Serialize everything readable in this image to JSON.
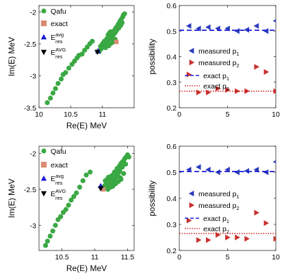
{
  "chart_data": [
    {
      "type": "scatter",
      "xlabel": "Re(E)  MeV",
      "ylabel": "Im(E)  MeV",
      "xlim": [
        10,
        11.5
      ],
      "ylim": [
        -3.5,
        -1.9
      ],
      "xticks": [
        10,
        10.5,
        11
      ],
      "xtick_labels": [
        "10",
        "10.5",
        "11"
      ],
      "yticks": [
        -3.5,
        -3,
        -2.5,
        -2
      ],
      "ytick_labels": [
        "-3.5",
        "-3",
        "-2.5",
        "-2"
      ],
      "legend_position": "top-left",
      "legend": [
        {
          "label": "Qafu",
          "marker": "circle",
          "color": "#3aa843"
        },
        {
          "label": "exact",
          "marker": "square",
          "color": "#d98c73"
        },
        {
          "label": "E",
          "sub": "res",
          "sup": "avg",
          "marker": "triangle-up",
          "color": "#1a1ad6"
        },
        {
          "label": "E",
          "sub": "res",
          "sup": "AVG",
          "marker": "triangle-down",
          "color": "#000000"
        }
      ],
      "series": [
        {
          "name": "Qafu",
          "marker": "circle",
          "color": "#3aa843",
          "x": [
            10.13,
            10.18,
            10.22,
            10.26,
            10.3,
            10.35,
            10.38,
            10.42,
            10.47,
            10.52,
            10.56,
            10.6,
            10.63,
            10.68,
            10.72,
            10.76,
            10.8,
            10.84,
            10.95,
            10.98,
            11.01,
            11.03,
            11.05,
            11.07,
            11.09,
            11.1,
            11.12,
            11.14,
            11.15,
            11.17,
            11.18,
            11.2,
            11.22,
            11.24,
            11.25,
            11.27,
            11.28,
            11.3,
            11.32,
            11.33,
            11.35,
            11.03,
            11.06,
            11.09,
            11.11,
            11.13,
            11.16,
            11.19,
            11.21,
            11.23,
            11.08,
            11.12,
            11.15,
            11.18,
            11.0,
            11.05,
            11.1,
            11.14,
            11.17,
            11.2,
            10.97,
            11.02,
            11.07,
            11.11,
            11.13,
            11.16,
            11.19,
            11.22,
            11.26,
            11.29,
            11.31
          ],
          "y": [
            -3.42,
            -3.35,
            -3.27,
            -3.2,
            -3.12,
            -3.05,
            -2.98,
            -2.95,
            -2.88,
            -2.82,
            -2.77,
            -2.72,
            -2.68,
            -2.66,
            -2.6,
            -2.55,
            -2.5,
            -2.46,
            -2.62,
            -2.58,
            -2.55,
            -2.52,
            -2.5,
            -2.47,
            -2.44,
            -2.42,
            -2.4,
            -2.37,
            -2.35,
            -2.32,
            -2.3,
            -2.27,
            -2.24,
            -2.22,
            -2.19,
            -2.17,
            -2.14,
            -2.11,
            -2.08,
            -2.05,
            -2.03,
            -2.46,
            -2.44,
            -2.36,
            -2.33,
            -2.31,
            -2.39,
            -2.34,
            -2.31,
            -2.28,
            -2.52,
            -2.48,
            -2.45,
            -2.42,
            -2.5,
            -2.56,
            -2.53,
            -2.49,
            -2.47,
            -2.43,
            -2.54,
            -2.48,
            -2.42,
            -2.38,
            -2.46,
            -2.37,
            -2.33,
            -2.29,
            -2.25,
            -2.21,
            -2.17
          ]
        },
        {
          "name": "exact",
          "marker": "square",
          "color": "#d98c73",
          "x": [
            11.22
          ],
          "y": [
            -2.47
          ]
        },
        {
          "name": "E_res^avg",
          "marker": "triangle-up",
          "color": "#1a1ad6",
          "x": [
            10.93
          ],
          "y": [
            -2.61
          ]
        },
        {
          "name": "E_res^AVG",
          "marker": "triangle-down",
          "color": "#000000",
          "x": [
            10.92
          ],
          "y": [
            -2.63
          ]
        }
      ]
    },
    {
      "type": "scatter",
      "xlabel": "",
      "ylabel": "possibility",
      "xlim": [
        0,
        10
      ],
      "ylim": [
        0.2,
        0.6
      ],
      "xticks": [
        0,
        5,
        10
      ],
      "xtick_labels": [
        "0",
        "5",
        "10"
      ],
      "yticks": [
        0.2,
        0.3,
        0.4,
        0.5,
        0.6
      ],
      "ytick_labels": [
        "0.2",
        "0.3",
        "0.4",
        "0.5",
        "0.6"
      ],
      "legend_position": "center-right",
      "legend": [
        {
          "label": "measured p",
          "sub": "1",
          "marker": "triangle-left",
          "color": "#2b3bbd"
        },
        {
          "label": "measured p",
          "sub": "2",
          "marker": "triangle-right",
          "color": "#c8302e"
        },
        {
          "label": "exact p",
          "sub": "1",
          "marker": "dashed-line",
          "color": "#1a1ad6"
        },
        {
          "label": "exact p",
          "sub": "2",
          "marker": "dotted-line",
          "color": "#d32020"
        }
      ],
      "series": [
        {
          "name": "measured p1",
          "marker": "triangle-left",
          "color": "#2b3bbd",
          "x": [
            1,
            2,
            3,
            4,
            5,
            6,
            7,
            8,
            9,
            10
          ],
          "y": [
            0.52,
            0.51,
            0.515,
            0.51,
            0.51,
            0.5,
            0.505,
            0.52,
            0.5,
            0.54
          ]
        },
        {
          "name": "measured p2",
          "marker": "triangle-right",
          "color": "#c8302e",
          "x": [
            1,
            2,
            3,
            4,
            5,
            6,
            7,
            8,
            9,
            10
          ],
          "y": [
            0.33,
            0.26,
            0.26,
            0.275,
            0.27,
            0.265,
            0.265,
            0.36,
            0.34,
            0.265
          ]
        },
        {
          "name": "exact p1",
          "line": "dashed",
          "color": "#1a1ad6",
          "y": 0.503
        },
        {
          "name": "exact p2",
          "line": "dotted",
          "color": "#d32020",
          "y": 0.265
        }
      ]
    },
    {
      "type": "scatter",
      "xlabel": "Re(E)  MeV",
      "ylabel": "Im(E)  MeV",
      "xlim": [
        10.15,
        11.6
      ],
      "ylim": [
        -3.35,
        -1.9
      ],
      "xticks": [
        10.5,
        11,
        11.5
      ],
      "xtick_labels": [
        "10.5",
        "11",
        "11.5"
      ],
      "yticks": [
        -3,
        -2.5,
        -2
      ],
      "ytick_labels": [
        "-3",
        "-2.5",
        "-2"
      ],
      "legend_position": "top-left",
      "legend": [
        {
          "label": "Qafu",
          "marker": "circle",
          "color": "#3aa843"
        },
        {
          "label": "exact",
          "marker": "square",
          "color": "#d98c73"
        },
        {
          "label": "E",
          "sub": "res",
          "sup": "avg",
          "marker": "triangle-up",
          "color": "#1a1ad6"
        },
        {
          "label": "E",
          "sub": "res",
          "sup": "AVG",
          "marker": "triangle-down",
          "color": "#000000"
        }
      ],
      "series": [
        {
          "name": "Qafu",
          "marker": "circle",
          "color": "#3aa843",
          "x": [
            10.25,
            10.28,
            10.32,
            10.36,
            10.4,
            10.44,
            10.48,
            10.52,
            10.56,
            10.6,
            10.64,
            10.68,
            10.72,
            10.77,
            10.82,
            10.87,
            10.93,
            11.12,
            11.15,
            11.18,
            11.2,
            11.22,
            11.24,
            11.26,
            11.28,
            11.3,
            11.32,
            11.34,
            11.36,
            11.38,
            11.4,
            11.42,
            11.44,
            11.46,
            11.48,
            11.5,
            11.16,
            11.19,
            11.21,
            11.23,
            11.25,
            11.27,
            11.29,
            11.31,
            11.33,
            11.35,
            11.37,
            11.2,
            11.24,
            11.28,
            11.32,
            11.36,
            11.4,
            11.18,
            11.22,
            11.26,
            11.3,
            11.34,
            11.38,
            11.42,
            11.44,
            11.47,
            11.52,
            11.27,
            11.33,
            11.39
          ],
          "y": [
            -3.28,
            -3.22,
            -3.15,
            -3.08,
            -3.0,
            -2.92,
            -2.88,
            -2.82,
            -2.78,
            -2.72,
            -2.65,
            -2.6,
            -2.55,
            -2.47,
            -2.38,
            -2.3,
            -2.26,
            -2.48,
            -2.45,
            -2.42,
            -2.4,
            -2.38,
            -2.35,
            -2.33,
            -2.3,
            -2.28,
            -2.25,
            -2.23,
            -2.2,
            -2.17,
            -2.14,
            -2.12,
            -2.1,
            -2.07,
            -2.05,
            -2.02,
            -2.38,
            -2.36,
            -2.33,
            -2.41,
            -2.43,
            -2.4,
            -2.37,
            -2.35,
            -2.32,
            -2.29,
            -2.26,
            -2.5,
            -2.47,
            -2.45,
            -2.42,
            -2.39,
            -2.36,
            -2.44,
            -2.4,
            -2.31,
            -2.26,
            -2.21,
            -2.24,
            -2.19,
            -2.28,
            -2.15,
            -2.05,
            -2.46,
            -2.4,
            -2.34
          ]
        },
        {
          "name": "exact",
          "marker": "square",
          "color": "#d98c73",
          "x": [
            11.13
          ],
          "y": [
            -2.5
          ]
        },
        {
          "name": "E_res^avg",
          "marker": "triangle-up",
          "color": "#1a1ad6",
          "x": [
            11.09
          ],
          "y": [
            -2.45
          ]
        },
        {
          "name": "E_res^AVG",
          "marker": "triangle-down",
          "color": "#000000",
          "x": [
            11.09
          ],
          "y": [
            -2.49
          ]
        }
      ]
    },
    {
      "type": "scatter",
      "xlabel": "",
      "ylabel": "possibility",
      "xlim": [
        0,
        10
      ],
      "ylim": [
        0.2,
        0.6
      ],
      "xticks": [
        0,
        5,
        10
      ],
      "xtick_labels": [
        "0",
        "5",
        "10"
      ],
      "yticks": [
        0.2,
        0.3,
        0.4,
        0.5,
        0.6
      ],
      "ytick_labels": [
        "0.2",
        "0.3",
        "0.4",
        "0.5",
        "0.6"
      ],
      "legend_position": "center-right",
      "legend": [
        {
          "label": "measured p",
          "sub": "1",
          "marker": "triangle-left",
          "color": "#2b3bbd"
        },
        {
          "label": "measured p",
          "sub": "2",
          "marker": "triangle-right",
          "color": "#c8302e"
        },
        {
          "label": "exact p",
          "sub": "1",
          "marker": "dashed-line",
          "color": "#1a1ad6"
        },
        {
          "label": "exact p",
          "sub": "2",
          "marker": "dotted-line",
          "color": "#d32020"
        }
      ],
      "series": [
        {
          "name": "measured p1",
          "marker": "triangle-left",
          "color": "#2b3bbd",
          "x": [
            1,
            2,
            3,
            4,
            5,
            6,
            7,
            8,
            9,
            10
          ],
          "y": [
            0.51,
            0.52,
            0.51,
            0.5,
            0.51,
            0.5,
            0.505,
            0.51,
            0.5,
            0.54
          ]
        },
        {
          "name": "measured p2",
          "marker": "triangle-right",
          "color": "#c8302e",
          "x": [
            1,
            2,
            3,
            4,
            5,
            6,
            7,
            8,
            9,
            10
          ],
          "y": [
            0.315,
            0.24,
            0.24,
            0.26,
            0.25,
            0.25,
            0.245,
            0.345,
            0.305,
            0.245
          ]
        },
        {
          "name": "exact p1",
          "line": "dashed",
          "color": "#1a1ad6",
          "y": 0.503
        },
        {
          "name": "exact p2",
          "line": "dotted",
          "color": "#d32020",
          "y": 0.265
        }
      ]
    }
  ]
}
